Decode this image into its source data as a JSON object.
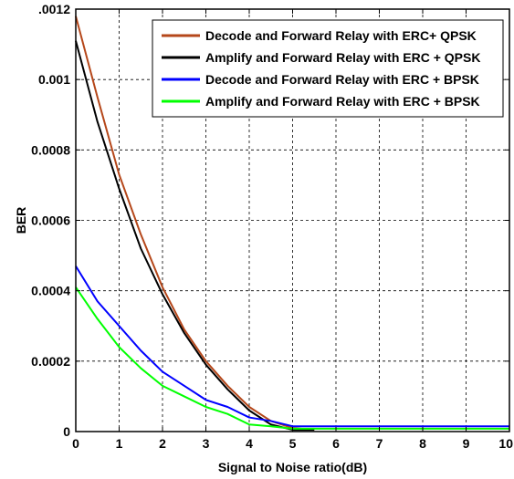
{
  "chart_data": {
    "type": "line",
    "title": "",
    "xlabel": "Signal to Noise ratio(dB)",
    "ylabel": "BER",
    "xlim": [
      0,
      10
    ],
    "ylim": [
      0,
      0.0012
    ],
    "grid": true,
    "legend_position": "top-right",
    "x_ticks": [
      0,
      1,
      2,
      3,
      4,
      5,
      6,
      7,
      8,
      9,
      10
    ],
    "x_tick_labels": [
      "0",
      "1",
      "2",
      "3",
      "4",
      "5",
      "6",
      "7",
      "8",
      "9",
      "10"
    ],
    "y_ticks": [
      0,
      0.0002,
      0.0004,
      0.0006,
      0.0008,
      0.001,
      0.0012
    ],
    "y_tick_labels": [
      "0",
      "0.0002",
      "0.0004",
      "0.0006",
      "0.0008",
      "0.001",
      ".0012"
    ],
    "series": [
      {
        "name": "Decode and Forward Relay with ERC+ QPSK",
        "color": "#b5471a",
        "x": [
          0,
          0.5,
          1,
          1.5,
          2,
          2.5,
          3,
          3.5,
          4,
          4.5,
          5,
          5.5
        ],
        "y": [
          0.00118,
          0.00095,
          0.00073,
          0.00056,
          0.00041,
          0.00029,
          0.0002,
          0.00013,
          7e-05,
          3e-05,
          1e-05,
          5e-06
        ]
      },
      {
        "name": "Amplify and Forward Relay with ERC + QPSK",
        "color": "#000000",
        "x": [
          0,
          0.5,
          1,
          1.5,
          2,
          2.5,
          3,
          3.5,
          4,
          4.5,
          5,
          5.5
        ],
        "y": [
          0.00111,
          0.00088,
          0.00069,
          0.00052,
          0.00039,
          0.00028,
          0.00019,
          0.00012,
          6e-05,
          2e-05,
          5e-06,
          5e-06
        ]
      },
      {
        "name": "Decode and Forward Relay with ERC + BPSK",
        "color": "#0000ff",
        "x": [
          0,
          0.5,
          1,
          1.5,
          2,
          2.5,
          3,
          3.5,
          4,
          4.5,
          5,
          6,
          7,
          8,
          9,
          10
        ],
        "y": [
          0.00047,
          0.00037,
          0.0003,
          0.00023,
          0.00017,
          0.00013,
          9e-05,
          7e-05,
          4e-05,
          3e-05,
          1.5e-05,
          1.5e-05,
          1.5e-05,
          1.5e-05,
          1.5e-05,
          1.5e-05
        ]
      },
      {
        "name": "Amplify and Forward Relay with ERC + BPSK",
        "color": "#00ff00",
        "x": [
          0,
          0.5,
          1,
          1.5,
          2,
          2.5,
          3,
          3.5,
          4,
          4.5,
          5,
          6,
          7,
          8,
          9,
          10
        ],
        "y": [
          0.00041,
          0.00032,
          0.00024,
          0.00018,
          0.00013,
          0.0001,
          7e-05,
          5e-05,
          2e-05,
          1.5e-05,
          8e-06,
          8e-06,
          8e-06,
          8e-06,
          8e-06,
          8e-06
        ]
      }
    ]
  }
}
